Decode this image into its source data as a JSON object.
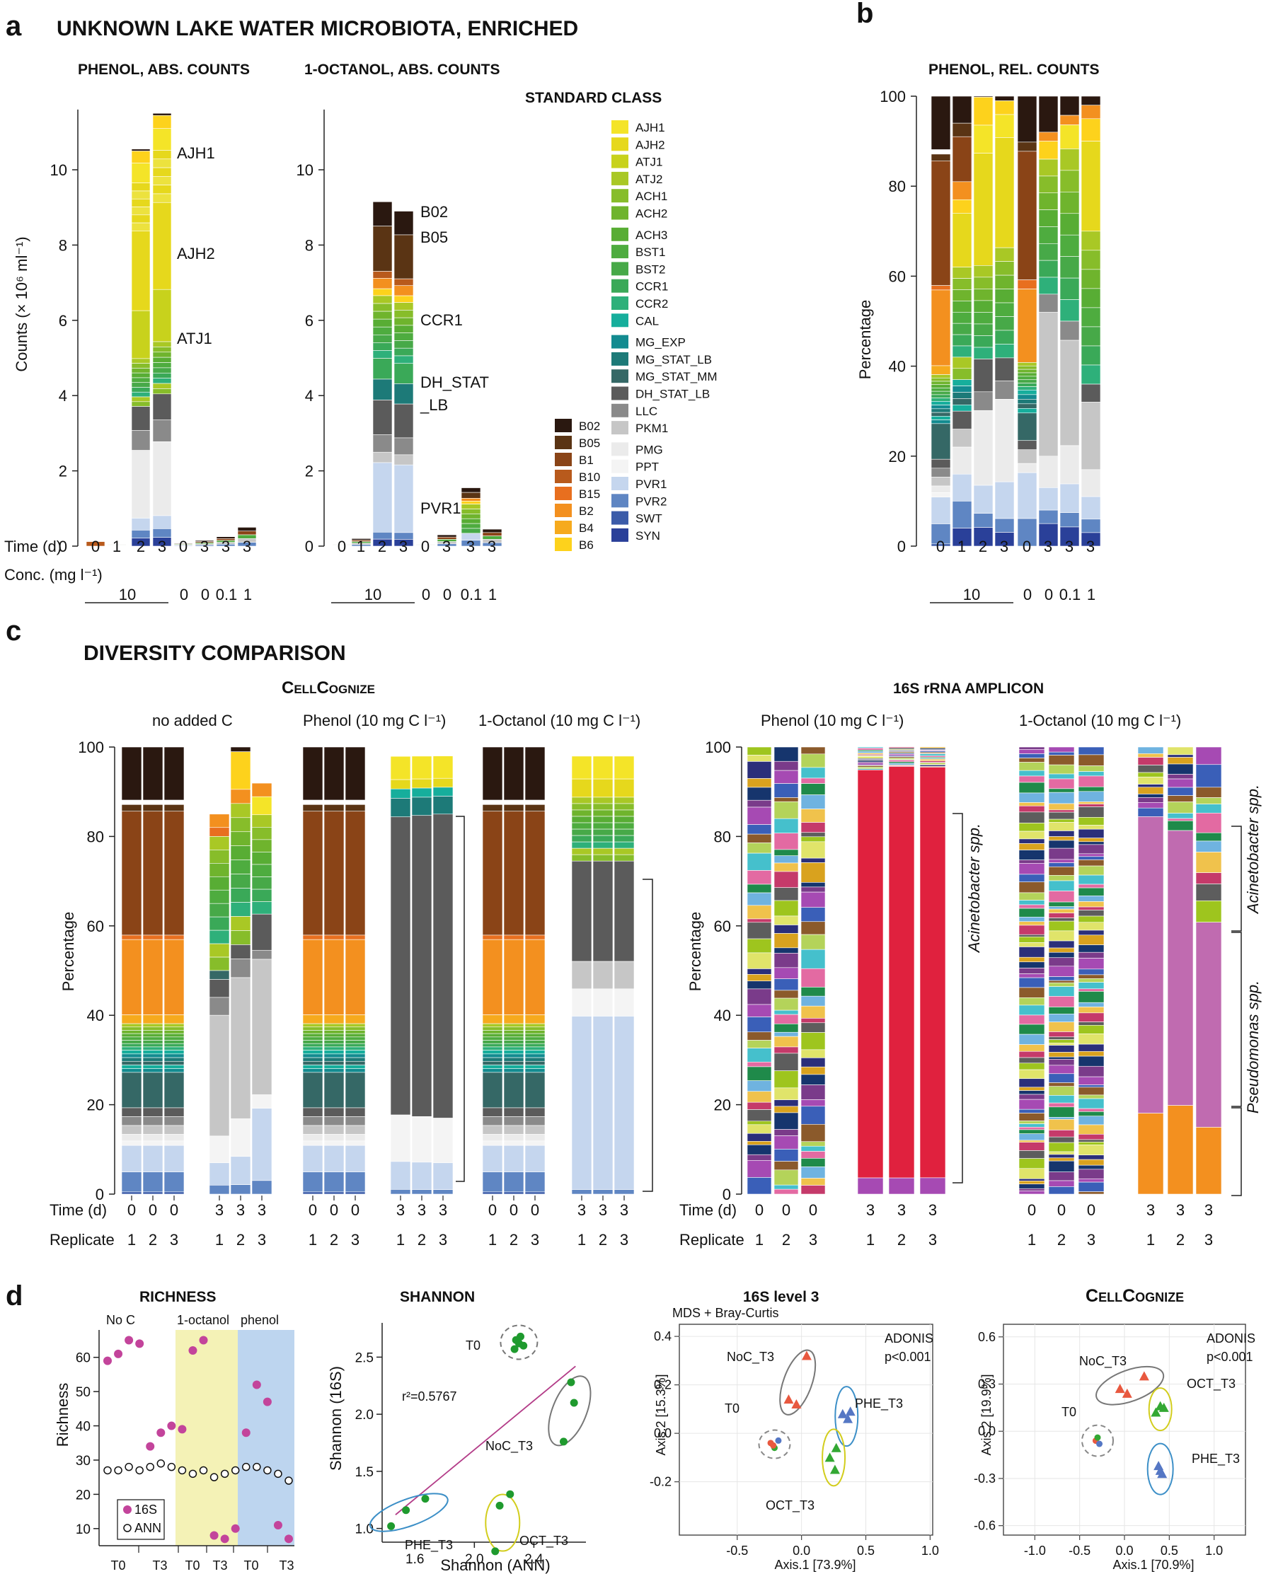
{
  "figure": {
    "panel_a": {
      "letter": "a",
      "title": "UNKNOWN LAKE WATER MICROBIOTA, ENRICHED",
      "sub_phenol": "PHENOL, ABS. COUNTS",
      "sub_octanol": "1-OCTANOL, ABS. COUNTS",
      "y_label": "Counts (× 10⁶ ml⁻¹)",
      "row_time": "Time (d)",
      "row_conc": "Conc. (mg l⁻¹)",
      "times": [
        "0",
        "1",
        "2",
        "3",
        "0",
        "3",
        "3",
        "3"
      ],
      "concs": [
        "0",
        "0",
        "0.1",
        "1"
      ],
      "bracket_value": "10",
      "legend_title": "STANDARD CLASS",
      "annotations_phenol": [
        "AJH1",
        "AJH2",
        "ATJ1"
      ],
      "annotations_octanol": [
        "B02",
        "B05",
        "CCR1",
        "DH_STAT",
        "_LB",
        "PVR1"
      ]
    },
    "panel_b": {
      "letter": "b",
      "title": "PHENOL, REL. COUNTS",
      "y_label": "Percentage"
    },
    "panel_c": {
      "letter": "c",
      "title": "DIVERSITY COMPARISON",
      "cellcognize_caps": "C",
      "cellcognize_rest": "ELL",
      "cellcognize_caps2": "C",
      "cellcognize_rest2": "OGNIZE",
      "amplicon_title": "16S rRNA AMPLICON",
      "cond_noC": "no added C",
      "cond_phenol": "Phenol (10 mg C l⁻¹)",
      "cond_octanol": "1-Octanol (10 mg C l⁻¹)",
      "y_label": "Percentage",
      "row_time": "Time (d)",
      "row_rep": "Replicate",
      "acinetobacter": "Acinetobacter spp.",
      "pseudomonas": "Pseudomonas spp."
    },
    "panel_d": {
      "letter": "d",
      "richness_title": "RICHNESS",
      "shannon_title": "SHANNON",
      "mds_title": "16S level 3",
      "cc_caps": "C",
      "cc_rest": "ELL",
      "cc_caps2": "C",
      "cc_rest2": "OGNIZE",
      "richness_ylabel": "Richness",
      "richness_groups": [
        "No C",
        "1-octanol",
        "phenol"
      ],
      "richness_x": [
        "T0",
        "T3",
        "T0",
        "T3",
        "T0",
        "T3"
      ],
      "legend_16s": "16S",
      "legend_ann": "ANN",
      "shannon_xlabel": "Shannon (ANN)",
      "shannon_ylabel": "Shannon (16S)",
      "r2": "r²=0.5767",
      "mds_note": "MDS + Bray-Curtis",
      "adonis": "ADONIS",
      "pval": "p<0.001",
      "mds_xlabel": "Axis.1   [73.9%]",
      "mds_ylabel": "Axis.2   [15.3%]",
      "cc_xlabel": "Axis.1   [70.9%]",
      "cc_ylabel": "Axis.2   [19.9%]",
      "grp_t0": "T0",
      "grp_noc": "NoC_T3",
      "grp_phe": "PHE_T3",
      "grp_oct": "OCT_T3"
    }
  },
  "chart_data": [
    {
      "id": "a-phenol-abs",
      "type": "bar",
      "stacked": true,
      "title": "PHENOL, ABS. COUNTS",
      "ylabel": "Counts (× 10⁶ ml⁻¹)",
      "ylim": [
        0,
        11.6
      ],
      "yticks": [
        0,
        2,
        4,
        6,
        8,
        10
      ],
      "categories": [
        "0 d 10",
        "1 d 10",
        "2 d 10",
        "3 d 10",
        "0 d 0",
        "3 d 0",
        "3 d 0.1",
        "3 d 1"
      ],
      "totals": [
        0.12,
        0.05,
        10.55,
        11.5,
        0.08,
        0.15,
        0.25,
        0.5
      ]
    },
    {
      "id": "a-octanol-abs",
      "type": "bar",
      "stacked": true,
      "title": "1-OCTANOL, ABS. COUNTS",
      "ylim": [
        0,
        11.6
      ],
      "yticks": [
        0,
        2,
        4,
        6,
        8,
        10
      ],
      "categories": [
        "0 d 10",
        "1 d 10",
        "2 d 10",
        "3 d 10",
        "0 d 0",
        "3 d 0",
        "3 d 0.1",
        "3 d 1"
      ],
      "totals": [
        0.05,
        0.2,
        9.15,
        8.9,
        0.05,
        0.3,
        1.55,
        0.45
      ]
    },
    {
      "id": "b-phenol-rel",
      "type": "bar",
      "stacked": true,
      "title": "PHENOL, REL. COUNTS",
      "ylabel": "Percentage",
      "ylim": [
        0,
        100
      ],
      "yticks": [
        0,
        20,
        40,
        60,
        80,
        100
      ],
      "categories": [
        "0",
        "1",
        "2",
        "3",
        "0",
        "3",
        "3",
        "3"
      ],
      "totals": [
        100,
        100,
        100,
        100,
        100,
        100,
        100,
        100
      ]
    },
    {
      "id": "c-cellcognize",
      "type": "bar",
      "stacked": true,
      "ylabel": "Percentage",
      "ylim": [
        0,
        100
      ],
      "yticks": [
        0,
        20,
        40,
        60,
        80,
        100
      ],
      "groups": [
        "no added C",
        "no added C",
        "Phenol (10 mg C l⁻¹)",
        "Phenol (10 mg C l⁻¹)",
        "1-Octanol (10 mg C l⁻¹)",
        "1-Octanol (10 mg C l⁻¹)"
      ],
      "time": [
        "0",
        "3",
        "0",
        "3",
        "0",
        "3"
      ],
      "replicates": [
        "1",
        "2",
        "3"
      ]
    },
    {
      "id": "c-16s-phenol",
      "type": "bar",
      "stacked": true,
      "title": "Phenol (10 mg C l⁻¹)",
      "ylim": [
        0,
        100
      ],
      "yticks": [
        0,
        20,
        40,
        60,
        80,
        100
      ],
      "acinetobacter_share_t3": [
        88,
        89,
        88
      ]
    },
    {
      "id": "c-16s-octanol",
      "type": "bar",
      "stacked": true,
      "title": "1-Octanol (10 mg C l⁻¹)",
      "ylim": [
        0,
        100
      ],
      "yticks": [
        0,
        20,
        40,
        60,
        80,
        100
      ],
      "acinetobacter_share_t3": [
        66,
        62,
        46
      ],
      "pseudomonas_share_t3": [
        18,
        20,
        15
      ]
    },
    {
      "id": "d-richness",
      "type": "scatter",
      "title": "RICHNESS",
      "ylabel": "Richness",
      "ylim": [
        5,
        68
      ],
      "yticks": [
        10,
        20,
        30,
        40,
        50,
        60
      ],
      "series": [
        {
          "name": "16S",
          "values": [
            59,
            61,
            65,
            64,
            34,
            38,
            40,
            39,
            62,
            65,
            8,
            7,
            10,
            38,
            52,
            47,
            11,
            7
          ]
        },
        {
          "name": "ANN",
          "values": [
            27,
            27,
            28,
            27,
            28,
            29,
            28,
            27,
            26,
            27,
            25,
            26,
            27,
            28,
            28,
            27,
            26,
            24
          ]
        }
      ]
    },
    {
      "id": "d-shannon",
      "type": "scatter",
      "title": "SHANNON",
      "xlabel": "Shannon (ANN)",
      "ylabel": "Shannon (16S)",
      "xlim": [
        1.38,
        2.75
      ],
      "ylim": [
        0.88,
        2.8
      ],
      "xticks": [
        1.6,
        2.0,
        2.4
      ],
      "yticks": [
        1.0,
        1.5,
        2.0,
        2.5
      ],
      "r2": 0.5767,
      "series": [
        {
          "name": "T0",
          "x": [
            2.27,
            2.3,
            2.33,
            2.28,
            2.31
          ],
          "y": [
            2.57,
            2.62,
            2.6,
            2.65,
            2.68
          ]
        },
        {
          "name": "NoC_T3",
          "x": [
            2.6,
            2.67,
            2.65
          ],
          "y": [
            1.76,
            2.1,
            2.28
          ]
        },
        {
          "name": "PHE_T3",
          "x": [
            1.44,
            1.54,
            1.67
          ],
          "y": [
            1.02,
            1.16,
            1.26
          ]
        },
        {
          "name": "OCT_T3",
          "x": [
            2.14,
            2.17,
            2.24
          ],
          "y": [
            0.8,
            1.2,
            1.3
          ]
        }
      ],
      "fit_line": {
        "x": [
          1.47,
          2.68
        ],
        "y": [
          1.12,
          2.42
        ]
      }
    },
    {
      "id": "d-mds-16s",
      "type": "scatter",
      "title": "16S level 3",
      "xlabel": "Axis.1 [73.9%]",
      "ylabel": "Axis.2 [15.3%]",
      "xlim": [
        -0.95,
        1.02
      ],
      "ylim": [
        -0.42,
        0.45
      ],
      "xticks": [
        -0.5,
        0.0,
        0.5,
        1.0
      ],
      "yticks": [
        -0.2,
        0.0,
        0.2,
        0.4
      ],
      "series": [
        {
          "name": "T0",
          "x": [
            -0.24,
            -0.21,
            -0.18,
            -0.22
          ],
          "y": [
            -0.04,
            -0.06,
            -0.03,
            -0.05
          ]
        },
        {
          "name": "NoC_T3",
          "x": [
            -0.1,
            -0.04,
            0.04
          ],
          "y": [
            0.14,
            0.12,
            0.32
          ]
        },
        {
          "name": "PHE_T3",
          "x": [
            0.32,
            0.36,
            0.38
          ],
          "y": [
            0.08,
            0.06,
            0.09
          ]
        },
        {
          "name": "OCT_T3",
          "x": [
            0.22,
            0.26,
            0.27
          ],
          "y": [
            -0.1,
            -0.15,
            -0.06
          ]
        }
      ]
    },
    {
      "id": "d-mds-cellcognize",
      "type": "scatter",
      "title": "CELLCOGNIZE",
      "xlabel": "Axis.1 [70.9%]",
      "ylabel": "Axis.2 [19.9%]",
      "xlim": [
        -1.35,
        1.35
      ],
      "ylim": [
        -0.66,
        0.68
      ],
      "xticks": [
        -1.0,
        -0.5,
        0.0,
        0.5,
        1.0
      ],
      "yticks": [
        -0.6,
        -0.3,
        0.0,
        0.3,
        0.6
      ],
      "series": [
        {
          "name": "T0",
          "x": [
            -0.32,
            -0.3,
            -0.28
          ],
          "y": [
            -0.06,
            -0.04,
            -0.08
          ]
        },
        {
          "name": "NoC_T3",
          "x": [
            -0.05,
            0.03,
            0.22
          ],
          "y": [
            0.27,
            0.24,
            0.35
          ]
        },
        {
          "name": "OCT_T3",
          "x": [
            0.35,
            0.4,
            0.44
          ],
          "y": [
            0.12,
            0.16,
            0.15
          ]
        },
        {
          "name": "PHE_T3",
          "x": [
            0.38,
            0.4,
            0.42
          ],
          "y": [
            -0.22,
            -0.25,
            -0.27
          ]
        }
      ]
    }
  ],
  "legend": {
    "b_classes": [
      "B02",
      "B05",
      "B1",
      "B10",
      "B15",
      "B2",
      "B4",
      "B6"
    ],
    "b_colors": [
      "#2a1810",
      "#5a3414",
      "#8a4417",
      "#b85a1c",
      "#e86f1f",
      "#f3901f",
      "#f6aa1d",
      "#fdd21c"
    ],
    "std_classes": [
      "AJH1",
      "AJH2",
      "ATJ1",
      "ATJ2",
      "ACH1",
      "ACH2",
      "ACH3",
      "BST1",
      "BST2",
      "CCR1",
      "CCR2",
      "CAL",
      "MG_EXP",
      "MG_STAT_LB",
      "MG_STAT_MM",
      "DH_STAT_LB",
      "LLC",
      "PKM1",
      "PMG",
      "PPT",
      "PVR1",
      "PVR2",
      "SWT",
      "SYN"
    ],
    "std_colors": [
      "#f4e428",
      "#e6d81c",
      "#c8d21c",
      "#a9c825",
      "#87bd2a",
      "#6fb42d",
      "#58ad34",
      "#4eac3f",
      "#47a948",
      "#3aa958",
      "#2eb07a",
      "#16ae9c",
      "#138b90",
      "#1d7a78",
      "#356866",
      "#5b5b5b",
      "#8a8a8a",
      "#c6c6c6",
      "#ebebeb",
      "#f4f4f4",
      "#c5d6ee",
      "#5f86c3",
      "#3b5ba9",
      "#2a4099"
    ]
  },
  "colors": {
    "pink": "#c3449b",
    "green": "#1f9a2e",
    "t0": "#7a7a7a",
    "noc": "#6a6a6a",
    "phe": "#3c8fc7",
    "oct": "#d2cd1c",
    "shade_oct": "#f4f2b6",
    "shade_phe": "#bdd5ef",
    "fit": "#b33c88",
    "red": "#e8583f",
    "blue_tri": "#5577c4",
    "green_tri": "#33a833"
  }
}
